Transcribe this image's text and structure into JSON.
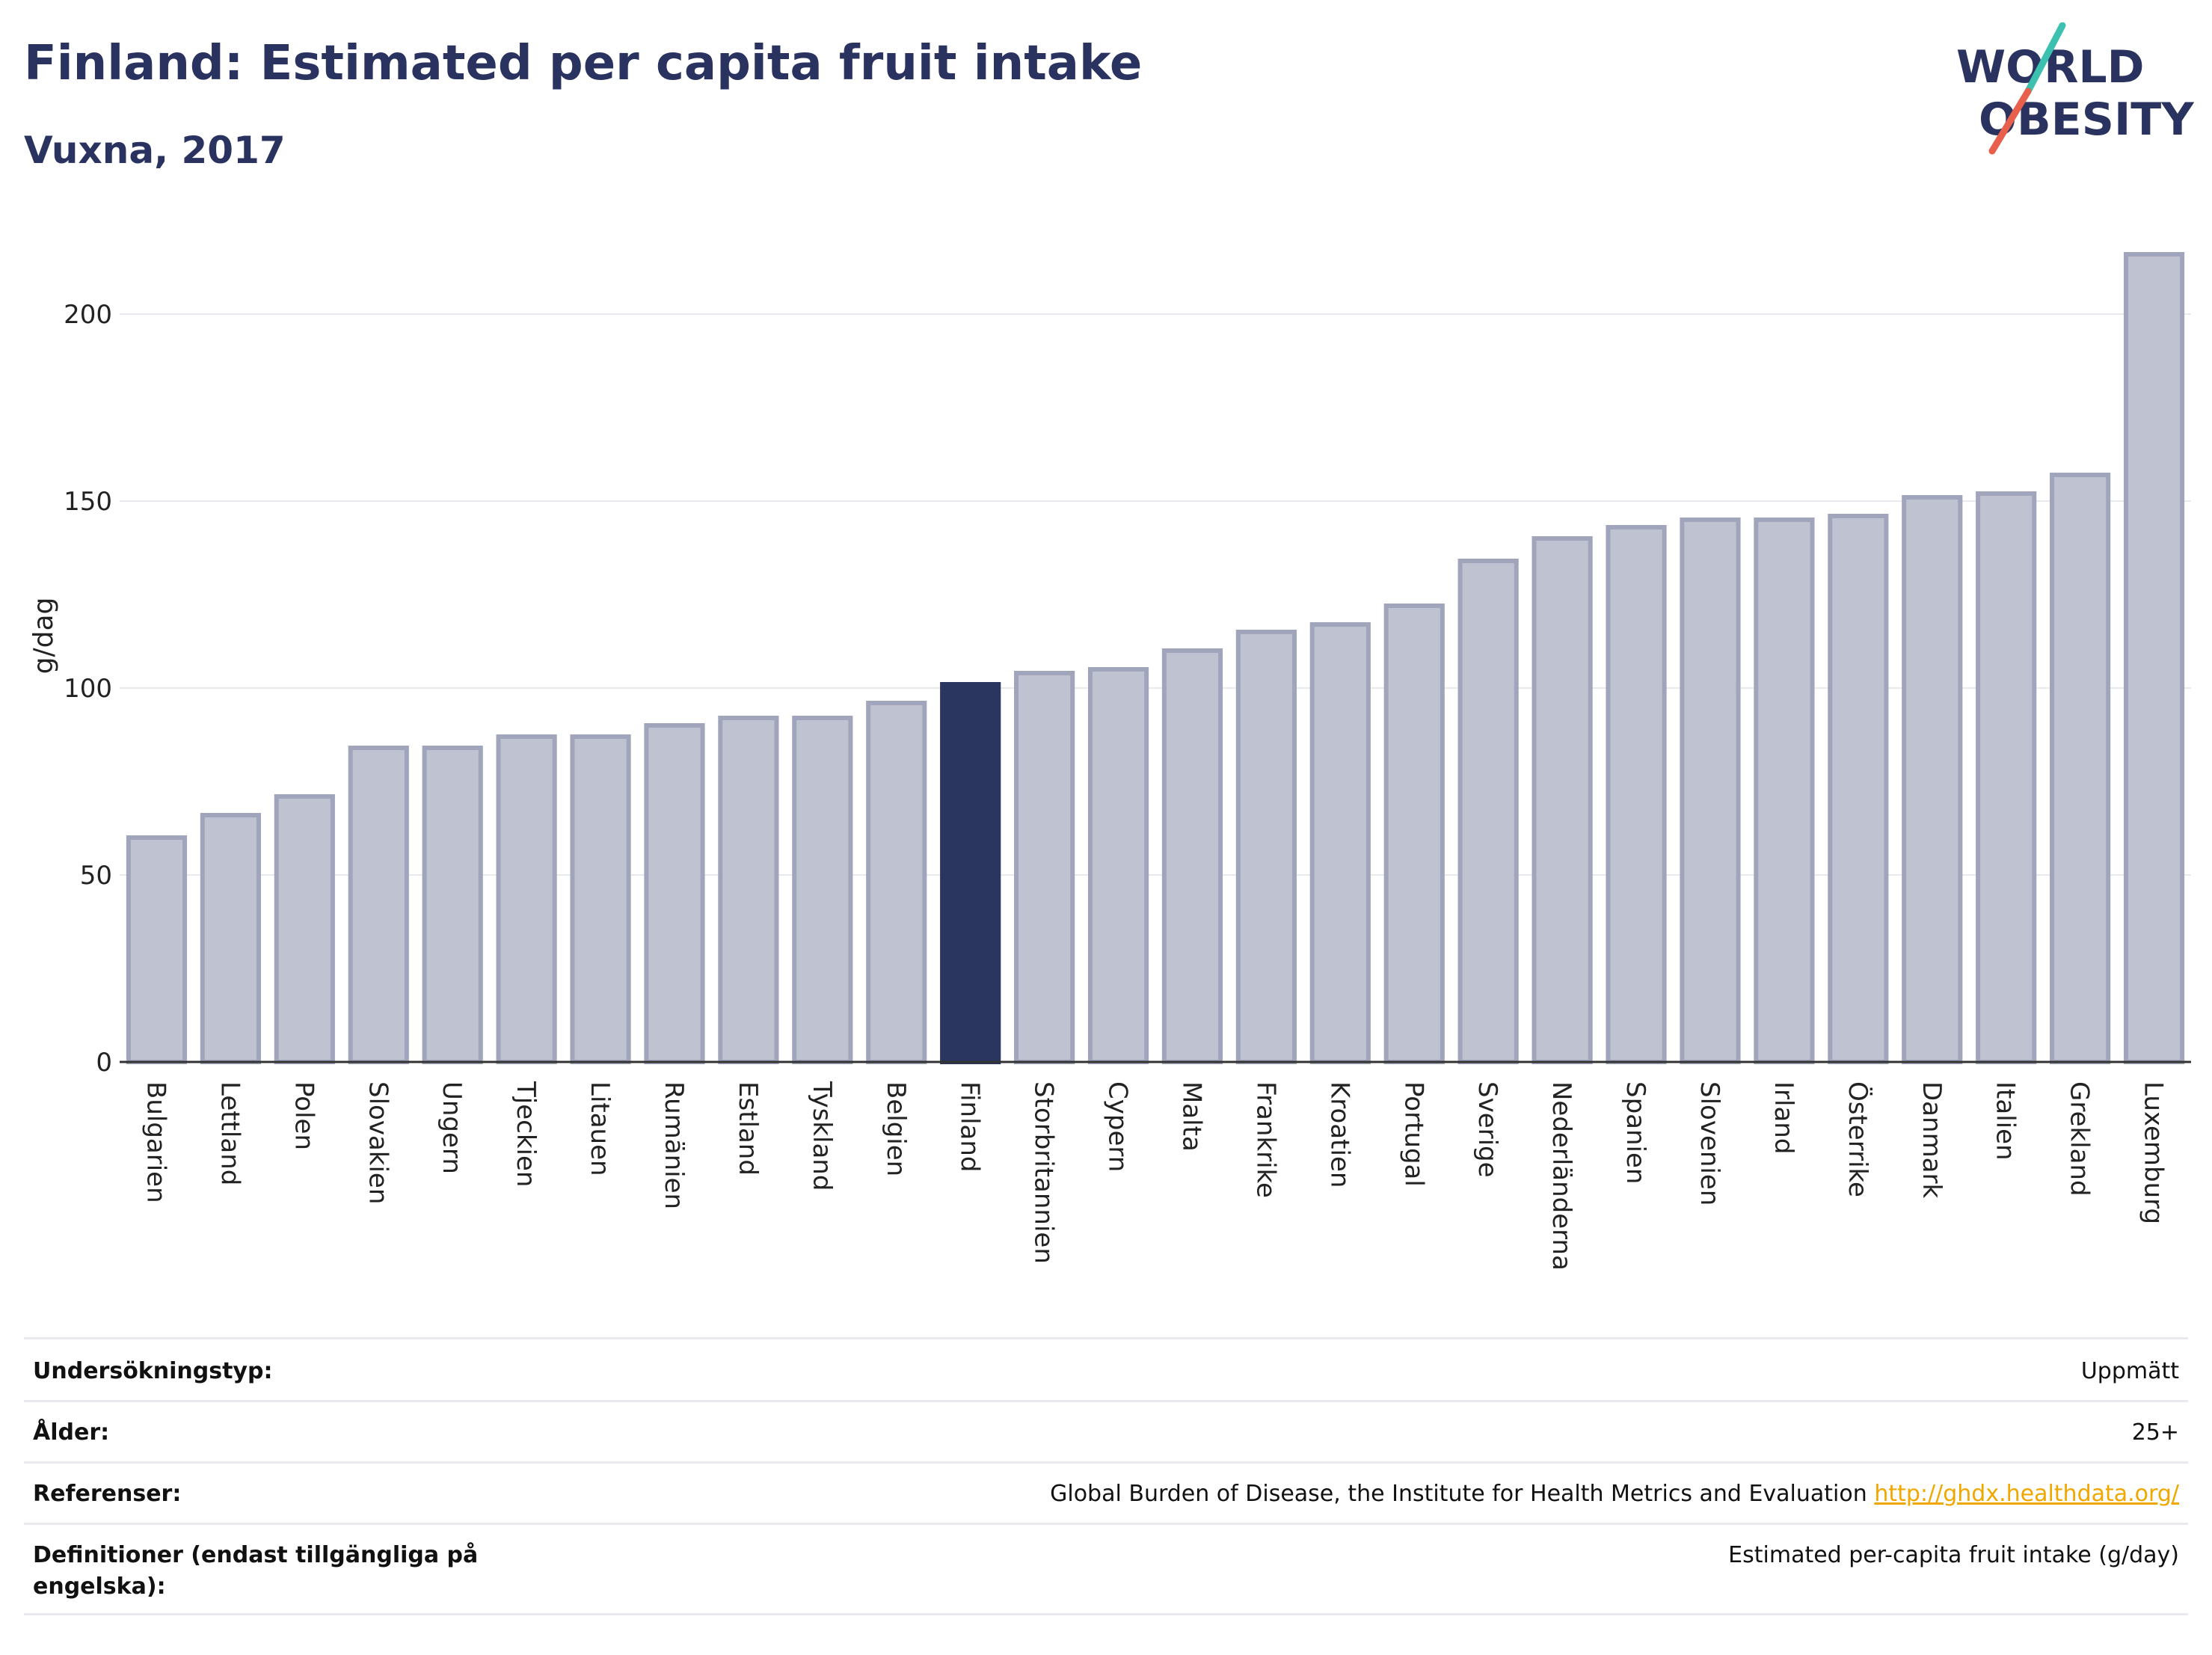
{
  "header": {
    "title": "Finland: Estimated per capita fruit intake",
    "subtitle": "Vuxna, 2017",
    "logo_line1": "WORLD",
    "logo_line2": "OBESITY"
  },
  "colors": {
    "highlight": "#2a3560",
    "bar_fill": "#bfc2d0",
    "bar_stroke": "#a0a5bb",
    "logo_slash_teal": "#3cc0b0",
    "logo_slash_red": "#e8604c",
    "link": "#f0a800"
  },
  "chart_data": {
    "type": "bar",
    "ylabel": "g/dag",
    "xlabel": "",
    "ylim": [
      0,
      218
    ],
    "yticks": [
      0,
      50,
      100,
      150,
      200
    ],
    "grid": true,
    "highlight_category": "Finland",
    "categories": [
      "Bulgarien",
      "Lettland",
      "Polen",
      "Slovakien",
      "Ungern",
      "Tjeckien",
      "Litauen",
      "Rumänien",
      "Estland",
      "Tyskland",
      "Belgien",
      "Finland",
      "Storbritannien",
      "Cypern",
      "Malta",
      "Frankrike",
      "Kroatien",
      "Portugal",
      "Sverige",
      "Nederländerna",
      "Spanien",
      "Slovenien",
      "Irland",
      "Österrike",
      "Danmark",
      "Italien",
      "Grekland",
      "Luxemburg"
    ],
    "values": [
      60,
      66,
      71,
      84,
      84,
      87,
      87,
      90,
      92,
      92,
      96,
      101,
      104,
      105,
      110,
      115,
      117,
      122,
      134,
      140,
      143,
      145,
      145,
      146,
      151,
      152,
      157,
      216
    ]
  },
  "info": {
    "rows": [
      {
        "key": "Undersökningstyp:",
        "value": "Uppmätt",
        "link": ""
      },
      {
        "key": "Ålder:",
        "value": "25+",
        "link": ""
      },
      {
        "key": "Referenser:",
        "value": "Global Burden of Disease, the Institute for Health Metrics and Evaluation",
        "link": "http://ghdx.healthdata.org/"
      },
      {
        "key": "Definitioner (endast tillgängliga på engelska):",
        "value": "Estimated per-capita fruit intake (g/day)",
        "link": ""
      }
    ]
  }
}
